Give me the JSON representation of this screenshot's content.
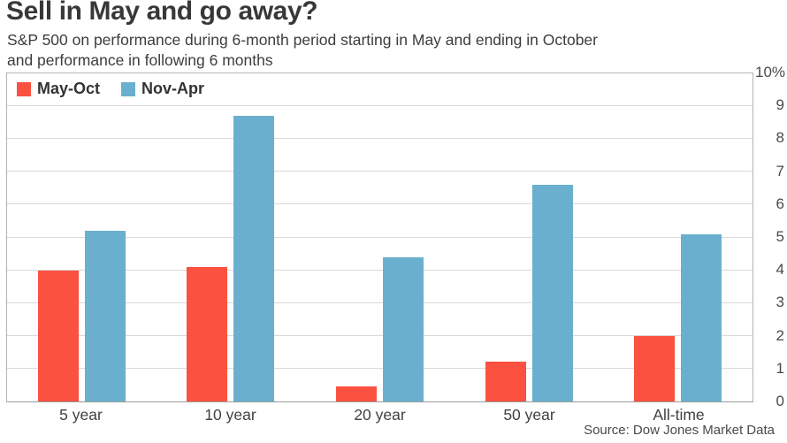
{
  "header": {
    "title": "Sell in May and go away?",
    "subtitle_line1": "S&P 500 on performance during 6-month period starting in May and ending in October",
    "subtitle_line2": "and performance in following 6 months"
  },
  "chart_data": {
    "type": "bar",
    "title": "Sell in May and go away?",
    "subtitle": "S&P 500 on performance during 6-month period starting in May and ending in October and performance in following 6 months",
    "categories": [
      "5 year",
      "10 year",
      "20 year",
      "50 year",
      "All-time"
    ],
    "series": [
      {
        "name": "May-Oct",
        "color": "#fb5140",
        "values": [
          4.0,
          4.1,
          0.45,
          1.2,
          2.0
        ]
      },
      {
        "name": "Nov-Apr",
        "color": "#6ab0ce",
        "values": [
          5.2,
          8.7,
          4.4,
          6.6,
          5.1
        ]
      }
    ],
    "xlabel": "",
    "ylabel": "",
    "ylim": [
      0,
      10
    ],
    "yticks": [
      0,
      1,
      2,
      3,
      4,
      5,
      6,
      7,
      8,
      9,
      10
    ],
    "ytick_labels": [
      "0",
      "1",
      "2",
      "3",
      "4",
      "5",
      "6",
      "7",
      "8",
      "9",
      "10%"
    ],
    "grid": true,
    "legend_position": "top-left",
    "y_axis_side": "right"
  },
  "source": "Source: Dow Jones Market Data"
}
